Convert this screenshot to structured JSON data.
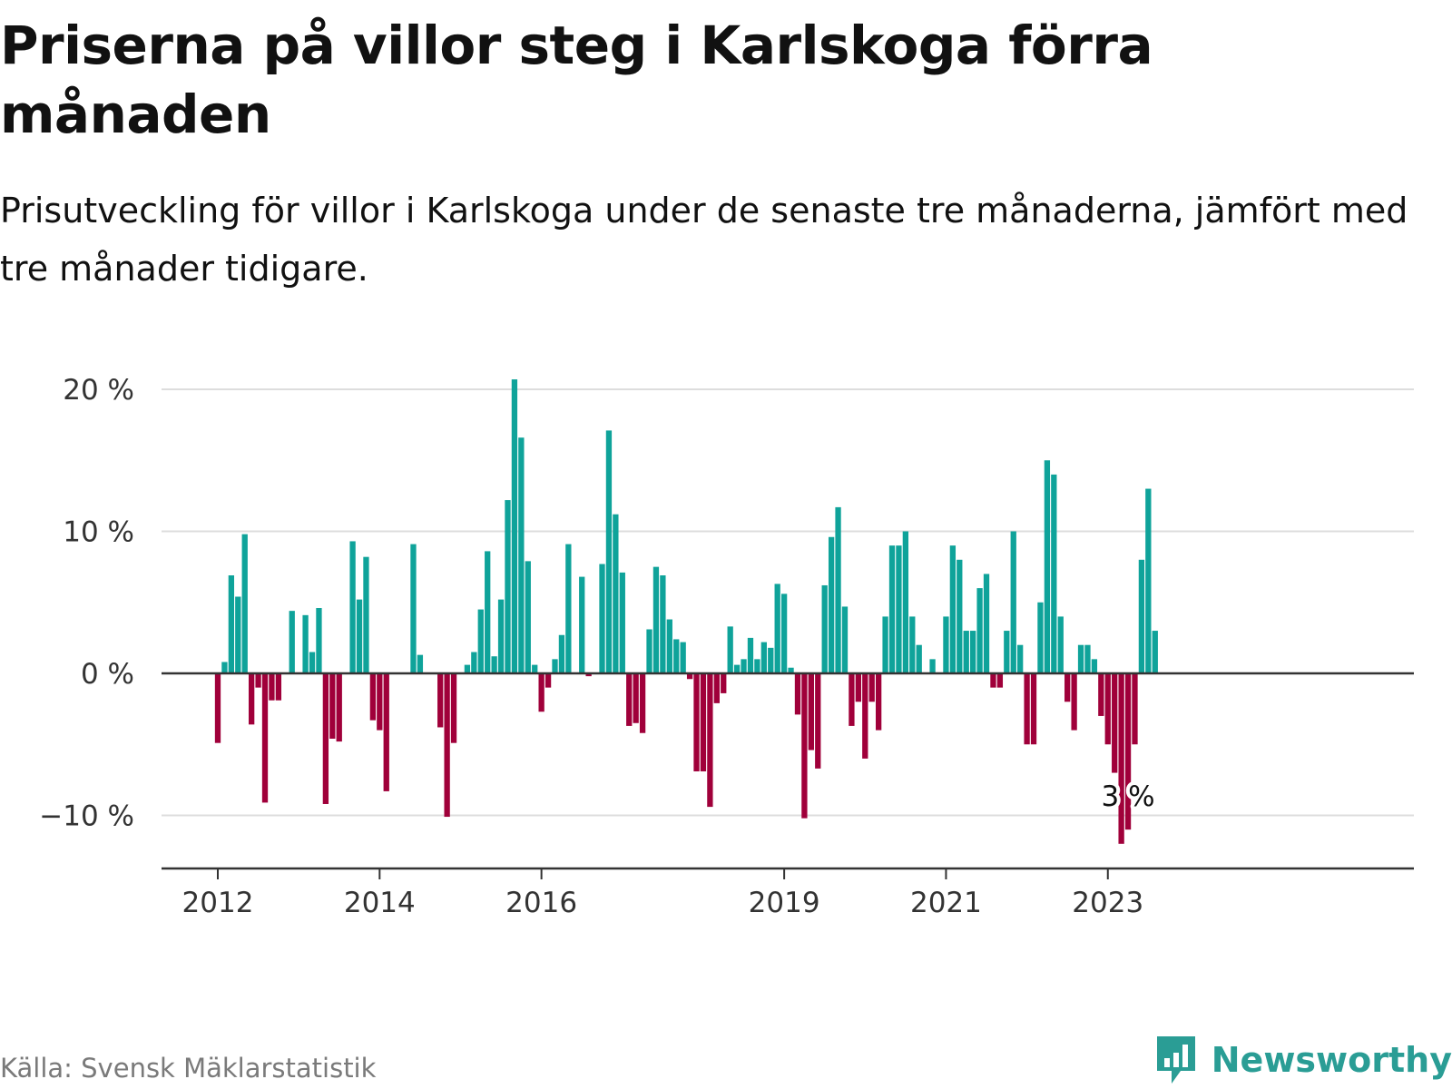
{
  "title": "Priserna på villor steg i Karlskoga förra månaden",
  "subtitle": "Prisutveckling för villor i Karlskoga under de senaste tre månaderna, jämfört med tre månader tidigare.",
  "source": "Källa: Svensk Mäklarstatistik",
  "brand": "Newsworthy",
  "colors": {
    "positive": "#0fa39a",
    "negative": "#a0003a",
    "grid": "#dddddd",
    "axis": "#333333",
    "brand": "#2a9d95"
  },
  "chart_data": {
    "type": "bar",
    "title": "Priserna på villor steg i Karlskoga förra månaden",
    "xlabel": "",
    "ylabel": "",
    "ylim": [
      -13.5,
      22
    ],
    "grid": true,
    "legend": "none",
    "y_ticks": [
      {
        "value": 20,
        "label": "20 %"
      },
      {
        "value": 10,
        "label": "10 %"
      },
      {
        "value": 0,
        "label": "0 %"
      },
      {
        "value": -10,
        "label": "−10 %"
      }
    ],
    "x_ticks": [
      {
        "month": "2012-01",
        "label": "2012"
      },
      {
        "month": "2014-01",
        "label": "2014"
      },
      {
        "month": "2016-01",
        "label": "2016"
      },
      {
        "month": "2019-01",
        "label": "2019"
      },
      {
        "month": "2021-01",
        "label": "2021"
      },
      {
        "month": "2023-01",
        "label": "2023"
      }
    ],
    "annotation": {
      "month": "2023-04",
      "label": "3 %"
    },
    "series": [
      {
        "start_month": "2012-01",
        "values": [
          -4.9,
          0.8,
          6.9,
          5.4,
          9.8,
          -3.6,
          -1.0,
          -9.1,
          -1.9,
          -1.9,
          0,
          4.4,
          0,
          4.1,
          1.5,
          4.6,
          -9.2,
          -4.6,
          -4.8,
          0,
          9.3,
          5.2,
          8.2,
          -3.3,
          -4.0,
          -8.3,
          0,
          0,
          0,
          9.1,
          1.3,
          0,
          0,
          -3.8,
          -10.1,
          -4.9,
          0,
          0.6,
          1.5,
          4.5,
          8.6,
          1.2,
          5.2,
          12.2,
          20.7,
          16.6,
          7.9,
          0.6,
          -2.7,
          -1.0,
          1.0,
          2.7,
          9.1,
          0,
          6.8,
          -0.2,
          0,
          7.7,
          17.1,
          11.2,
          7.1,
          -3.7,
          -3.5,
          -4.2,
          3.1,
          7.5,
          6.9,
          3.8,
          2.4,
          2.2,
          -0.4,
          -6.9,
          -6.9,
          -9.4,
          -2.1,
          -1.4,
          3.3,
          0.6,
          1.0,
          2.5,
          1.0,
          2.2,
          1.8,
          6.3,
          5.6,
          0.4,
          -2.9,
          -10.2,
          -5.4,
          -6.7,
          6.2,
          9.6,
          11.7,
          4.7,
          -3.7,
          -2.0,
          -6.0,
          -2.0,
          -4.0,
          4.0,
          9.0,
          9.0,
          10.0,
          4.0,
          2.0,
          0,
          1.0,
          0,
          4.0,
          9.0,
          8.0,
          3.0,
          3.0,
          6.0,
          7.0,
          -1.0,
          -1.0,
          3.0,
          10.0,
          2.0,
          -5.0,
          -5.0,
          5.0,
          15.0,
          14.0,
          4.0,
          -2.0,
          -4.0,
          2.0,
          2.0,
          1.0,
          -3.0,
          -5.0,
          -7.0,
          -12.0,
          -11.0,
          -5.0,
          8.0,
          13.0,
          3.0
        ]
      }
    ]
  }
}
